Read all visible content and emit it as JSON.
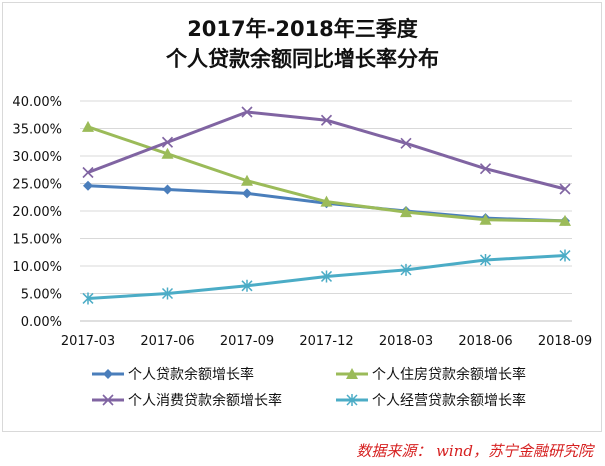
{
  "title": {
    "line1": "2017年-2018年三季度",
    "line2": "个人贷款余额同比增长率分布"
  },
  "source_note": "数据来源：  wind，苏宁金融研究院",
  "chart_data": {
    "type": "line",
    "title": "2017年-2018年三季度 个人贷款余额同比增长率分布",
    "xlabel": "",
    "ylabel": "",
    "categories": [
      "2017-03",
      "2017-06",
      "2017-09",
      "2017-12",
      "2018-03",
      "2018-06",
      "2018-09"
    ],
    "ylim": [
      0,
      40
    ],
    "yticks": [
      "0.00%",
      "5.00%",
      "10.00%",
      "15.00%",
      "20.00%",
      "25.00%",
      "30.00%",
      "35.00%",
      "40.00%"
    ],
    "grid": true,
    "legend_position": "bottom",
    "series": [
      {
        "name": "个人贷款余额增长率",
        "color": "#4a7ebb",
        "marker": "diamond",
        "values": [
          24.6,
          23.9,
          23.2,
          21.4,
          20.0,
          18.7,
          18.2
        ]
      },
      {
        "name": "个人住房贷款余额增长率",
        "color": "#9bbb59",
        "marker": "triangle",
        "values": [
          35.3,
          30.4,
          25.5,
          21.7,
          19.8,
          18.4,
          18.2
        ]
      },
      {
        "name": "个人消费贷款余额增长率",
        "color": "#8064a2",
        "marker": "x",
        "values": [
          27.0,
          32.5,
          38.0,
          36.5,
          32.3,
          27.7,
          24.0
        ]
      },
      {
        "name": "个人经营贷款余额增长率",
        "color": "#4bacc6",
        "marker": "star",
        "values": [
          4.1,
          5.0,
          6.4,
          8.1,
          9.3,
          11.1,
          11.9
        ]
      }
    ]
  }
}
